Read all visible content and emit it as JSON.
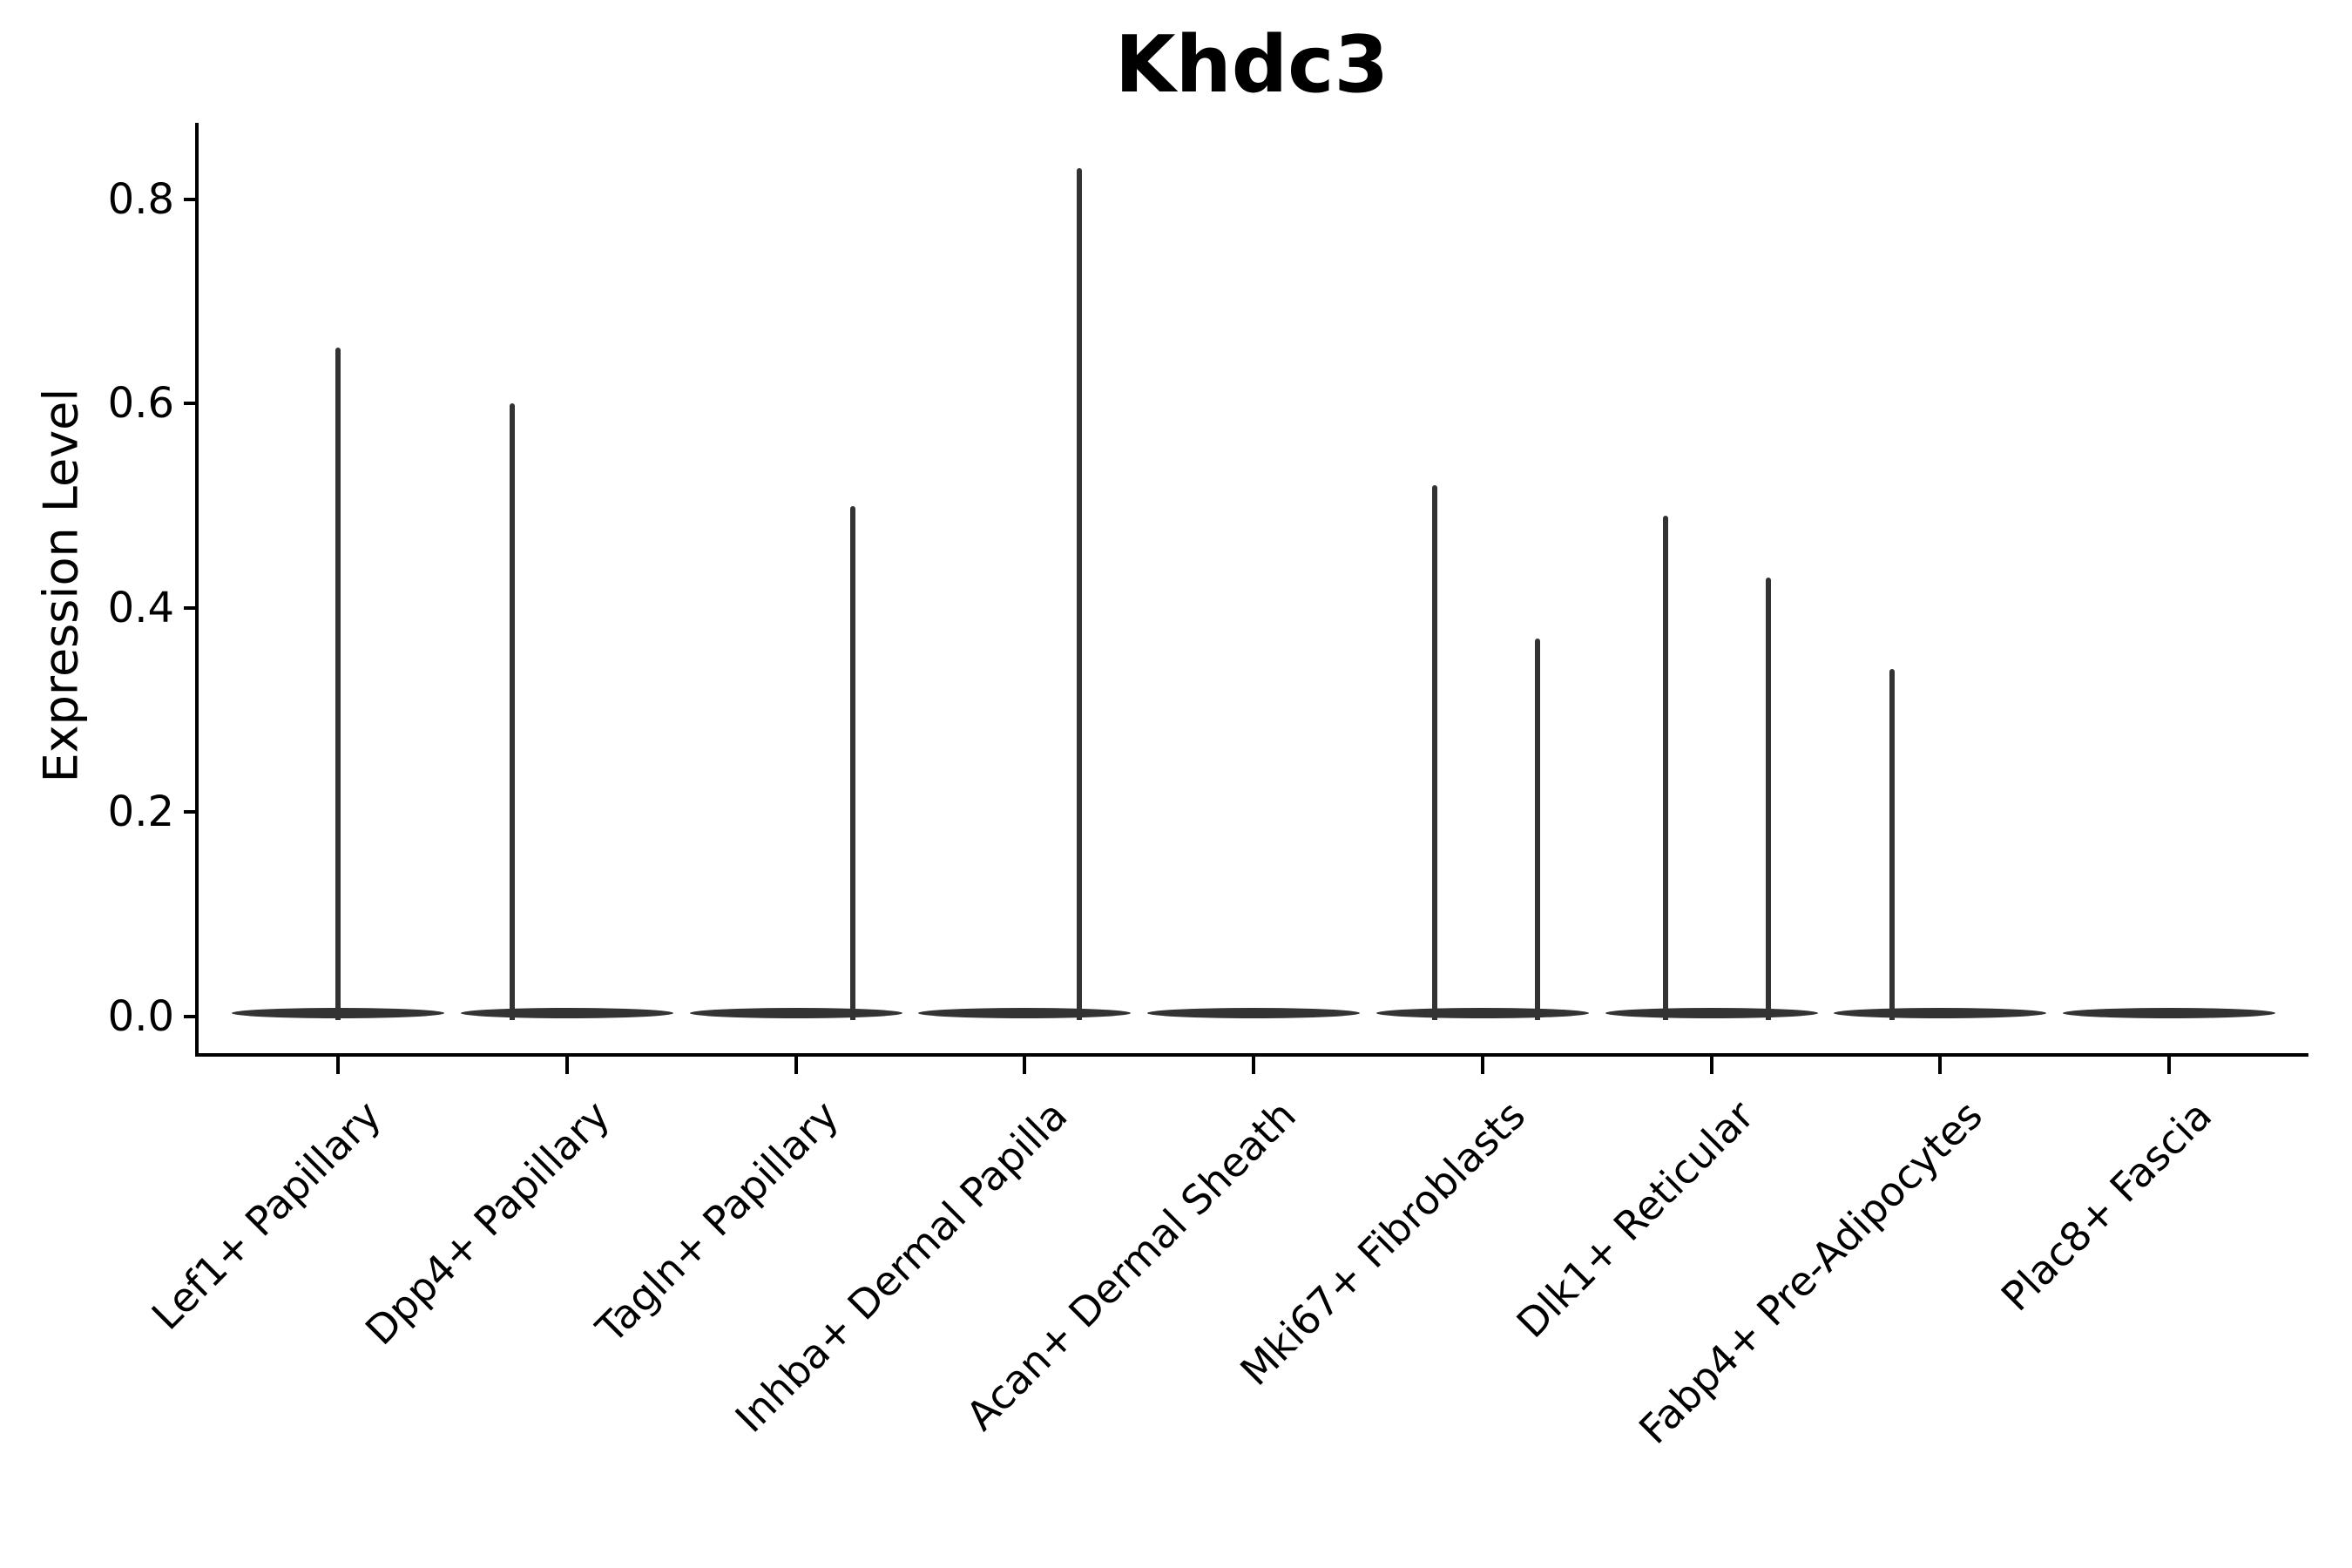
{
  "title": "Khdc3",
  "axes": {
    "ylabel": "Expression Level",
    "ytick_labels": [
      "0.0",
      "0.2",
      "0.4",
      "0.6",
      "0.8"
    ],
    "ytick_values": [
      0.0,
      0.2,
      0.4,
      0.6,
      0.8
    ],
    "ylim": [
      0.0,
      0.88
    ],
    "grid": false,
    "spines": [
      "left",
      "bottom"
    ]
  },
  "colors": {
    "violin": "#333333",
    "axis": "#000000",
    "text": "#000000",
    "background": "#ffffff"
  },
  "chart_data": {
    "type": "violin",
    "title": "Khdc3",
    "xlabel": "",
    "ylabel": "Expression Level",
    "categories": [
      "Lef1+ Papillary",
      "Dpp4+ Papillary",
      "Tagln+ Papillary",
      "Inhba+ Dermal Papilla",
      "Acan+ Dermal Sheath",
      "Mki67+ Fibroblasts",
      "Dlk1+ Reticular",
      "Fabp4+ Pre-Adipocytes",
      "Plac8+ Fascia"
    ],
    "description": "Each category shows a wide flat violin base at expression 0 with thin density spikes rising to the max expression value; offset is the spike x-position as a fraction of one category slot width.",
    "violins": [
      {
        "category": "Lef1+ Papillary",
        "max_expression": 0.655,
        "spikes": [
          {
            "value": 0.655,
            "offset": 0.0
          }
        ]
      },
      {
        "category": "Dpp4+ Papillary",
        "max_expression": 0.6,
        "spikes": [
          {
            "value": 0.6,
            "offset": -0.24
          }
        ]
      },
      {
        "category": "Tagln+ Papillary",
        "max_expression": 0.5,
        "spikes": [
          {
            "value": 0.5,
            "offset": 0.25
          }
        ]
      },
      {
        "category": "Inhba+ Dermal Papilla",
        "max_expression": 0.83,
        "spikes": [
          {
            "value": 0.83,
            "offset": 0.24
          }
        ]
      },
      {
        "category": "Acan+ Dermal Sheath",
        "max_expression": 0.0,
        "spikes": []
      },
      {
        "category": "Mki67+ Fibroblasts",
        "max_expression": 0.52,
        "spikes": [
          {
            "value": 0.52,
            "offset": -0.21
          },
          {
            "value": 0.37,
            "offset": 0.24
          }
        ]
      },
      {
        "category": "Dlk1+ Reticular",
        "max_expression": 0.49,
        "spikes": [
          {
            "value": 0.49,
            "offset": -0.2
          },
          {
            "value": 0.43,
            "offset": 0.25
          }
        ]
      },
      {
        "category": "Fabp4+ Pre-Adipocytes",
        "max_expression": 0.34,
        "spikes": [
          {
            "value": 0.34,
            "offset": -0.21
          }
        ]
      },
      {
        "category": "Plac8+ Fascia",
        "max_expression": 0.0,
        "spikes": []
      }
    ]
  }
}
